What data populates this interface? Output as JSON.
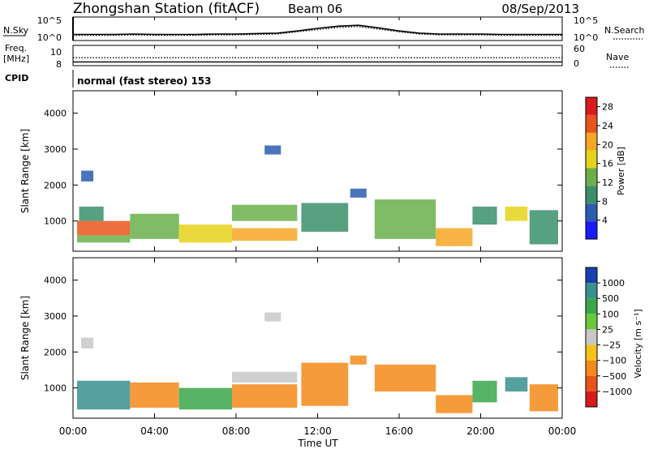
{
  "header": {
    "title": "Zhongshan Station (fitACF)",
    "beam": "Beam 06",
    "date": "08/Sep/2013"
  },
  "chart_data": [
    {
      "type": "line",
      "panel": "noise",
      "left_label": "N.Sky",
      "right_label": "N.Search",
      "left_ticks": [
        "10^5",
        "10^0"
      ],
      "right_ticks": [
        "10^5",
        "10^0"
      ],
      "series": [
        {
          "name": "N.Sky",
          "style": "solid",
          "x": [
            0,
            1,
            2,
            3,
            4,
            5,
            6,
            7,
            8,
            9,
            10,
            11,
            12,
            13,
            14,
            15,
            16,
            17,
            18,
            19,
            20,
            21,
            22,
            23,
            24
          ],
          "values": [
            1.2,
            1.2,
            1.2,
            1.3,
            1.2,
            1.2,
            1.2,
            1.3,
            1.3,
            1.4,
            1.5,
            2.0,
            2.6,
            3.1,
            3.3,
            2.7,
            2.0,
            1.5,
            1.3,
            1.3,
            1.3,
            1.2,
            1.2,
            1.2,
            1.2
          ]
        },
        {
          "name": "N.Search",
          "style": "dotted",
          "x": [
            0,
            1,
            2,
            3,
            4,
            5,
            6,
            7,
            8,
            9,
            10,
            11,
            12,
            13,
            14,
            15,
            16,
            17,
            18,
            19,
            20,
            21,
            22,
            23,
            24
          ],
          "values": [
            1.0,
            1.0,
            1.0,
            1.1,
            1.0,
            1.0,
            1.0,
            1.1,
            1.1,
            1.2,
            1.3,
            1.8,
            2.3,
            2.8,
            3.0,
            2.4,
            1.8,
            1.3,
            1.1,
            1.1,
            1.1,
            1.0,
            1.0,
            1.0,
            1.0
          ]
        }
      ]
    },
    {
      "type": "line",
      "panel": "frequency",
      "left_label_line1": "Freq.",
      "left_label_line2": "[MHz]",
      "right_label": "Nave",
      "left_ticks": [
        "10",
        "8"
      ],
      "right_ticks": [
        "60",
        "0"
      ],
      "series": [
        {
          "name": "Freq.",
          "style": "solid",
          "x": [
            0,
            24
          ],
          "values": [
            8.3,
            8.3
          ]
        },
        {
          "name": "Nave",
          "style": "dotted",
          "x": [
            0,
            24
          ],
          "values": [
            22,
            22
          ]
        }
      ]
    },
    {
      "type": "text",
      "panel": "cpid",
      "label": "CPID",
      "value": "normal (fast stereo) 153"
    },
    {
      "type": "heatmap",
      "panel": "power",
      "ylabel": "Slant Range [km]",
      "y_ticks": [
        "1000",
        "2000",
        "3000",
        "4000"
      ],
      "ylim": [
        180,
        4600
      ],
      "colorbar_label": "Power [dB]",
      "colorbar_ticks": [
        "4",
        "8",
        "12",
        "16",
        "20",
        "24",
        "28"
      ],
      "colorbar_range": [
        0,
        30
      ],
      "colors": [
        "#1a1aff",
        "#2a5db0",
        "#3a8f6a",
        "#6ab04a",
        "#e6d21a",
        "#f5a623",
        "#e8551c",
        "#d91a1a"
      ],
      "cells": [
        {
          "x": [
            0.2,
            2.8
          ],
          "y": [
            600,
            1000
          ],
          "level": 24
        },
        {
          "x": [
            0.2,
            2.8
          ],
          "y": [
            400,
            600
          ],
          "level": 14
        },
        {
          "x": [
            0.3,
            1.5
          ],
          "y": [
            1000,
            1400
          ],
          "level": 10
        },
        {
          "x": [
            0.4,
            1.0
          ],
          "y": [
            2100,
            2400
          ],
          "level": 6
        },
        {
          "x": [
            2.8,
            5.2
          ],
          "y": [
            500,
            1200
          ],
          "level": 12
        },
        {
          "x": [
            5.2,
            7.8
          ],
          "y": [
            400,
            900
          ],
          "level": 18
        },
        {
          "x": [
            7.8,
            11.0
          ],
          "y": [
            450,
            800
          ],
          "level": 20
        },
        {
          "x": [
            7.8,
            11.0
          ],
          "y": [
            1000,
            1450
          ],
          "level": 12
        },
        {
          "x": [
            9.4,
            10.2
          ],
          "y": [
            2850,
            3100
          ],
          "level": 6
        },
        {
          "x": [
            11.2,
            13.5
          ],
          "y": [
            700,
            1500
          ],
          "level": 10
        },
        {
          "x": [
            13.6,
            14.4
          ],
          "y": [
            1650,
            1900
          ],
          "level": 6
        },
        {
          "x": [
            14.8,
            17.8
          ],
          "y": [
            500,
            1600
          ],
          "level": 14
        },
        {
          "x": [
            17.8,
            19.6
          ],
          "y": [
            300,
            800
          ],
          "level": 22
        },
        {
          "x": [
            19.6,
            20.8
          ],
          "y": [
            900,
            1400
          ],
          "level": 8
        },
        {
          "x": [
            21.2,
            22.3
          ],
          "y": [
            1000,
            1400
          ],
          "level": 16
        },
        {
          "x": [
            22.4,
            23.8
          ],
          "y": [
            350,
            1300
          ],
          "level": 10
        }
      ]
    },
    {
      "type": "heatmap",
      "panel": "velocity",
      "ylabel": "Slant Range [km]",
      "y_ticks": [
        "1000",
        "2000",
        "3000",
        "4000"
      ],
      "ylim": [
        180,
        4600
      ],
      "colorbar_label": "Velocity [m s⁻¹]",
      "colorbar_ticks": [
        "1000",
        "500",
        "100",
        "25",
        "−25",
        "−100",
        "−500",
        "−1000"
      ],
      "colors": [
        "#1a3fb0",
        "#3a8f8f",
        "#3aa64a",
        "#6ac93a",
        "#c8c8c8",
        "#f5c21a",
        "#f58a1a",
        "#e8551c",
        "#d91a1a"
      ],
      "cells": [
        {
          "x": [
            0.2,
            2.8
          ],
          "y": [
            400,
            1200
          ],
          "value": 100
        },
        {
          "x": [
            0.4,
            1.0
          ],
          "y": [
            2100,
            2400
          ],
          "value": 0
        },
        {
          "x": [
            2.8,
            5.2
          ],
          "y": [
            450,
            1150
          ],
          "value": -250
        },
        {
          "x": [
            5.2,
            7.8
          ],
          "y": [
            400,
            1000
          ],
          "value": 80
        },
        {
          "x": [
            7.8,
            11.0
          ],
          "y": [
            1150,
            1450
          ],
          "value": 0
        },
        {
          "x": [
            7.8,
            11.0
          ],
          "y": [
            450,
            1100
          ],
          "value": -300
        },
        {
          "x": [
            9.4,
            10.2
          ],
          "y": [
            2850,
            3100
          ],
          "value": 0
        },
        {
          "x": [
            11.2,
            13.5
          ],
          "y": [
            500,
            1700
          ],
          "value": -300
        },
        {
          "x": [
            13.6,
            14.4
          ],
          "y": [
            1650,
            1900
          ],
          "value": -250
        },
        {
          "x": [
            14.8,
            17.8
          ],
          "y": [
            900,
            1650
          ],
          "value": -300
        },
        {
          "x": [
            17.8,
            19.6
          ],
          "y": [
            300,
            800
          ],
          "value": -200
        },
        {
          "x": [
            19.6,
            20.8
          ],
          "y": [
            600,
            1200
          ],
          "value": 60
        },
        {
          "x": [
            21.2,
            22.3
          ],
          "y": [
            900,
            1300
          ],
          "value": 200
        },
        {
          "x": [
            22.4,
            23.8
          ],
          "y": [
            350,
            1100
          ],
          "value": -150
        }
      ]
    }
  ],
  "x_axis": {
    "ticks": [
      "00:00",
      "04:00",
      "08:00",
      "12:00",
      "16:00",
      "20:00",
      "00:00"
    ],
    "label": "Time UT"
  }
}
